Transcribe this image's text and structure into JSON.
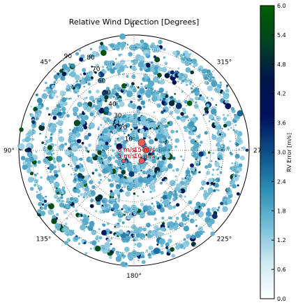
{
  "chart_data": {
    "type": "scatter",
    "projection": "polar",
    "title": "Relative Wind Direction [Degrees]",
    "theta_direction": "clockwise",
    "theta_zero": "top",
    "theta_ticks": [
      {
        "deg": 0,
        "label": "0°"
      },
      {
        "deg": 45,
        "label": "315°"
      },
      {
        "deg": 90,
        "label": "270°"
      },
      {
        "deg": 135,
        "label": "225°"
      },
      {
        "deg": 180,
        "label": "180°"
      },
      {
        "deg": 225,
        "label": "135°"
      },
      {
        "deg": 270,
        "label": "90°"
      },
      {
        "deg": 315,
        "label": "45°"
      }
    ],
    "r_ticks": [
      "10",
      "20",
      "30",
      "40",
      "50",
      "60",
      "70",
      "80",
      "90"
    ],
    "r_range": [
      0,
      90
    ],
    "colorbar": {
      "label": "RV Error [m/s]",
      "range": [
        0,
        6
      ],
      "ticks": [
        "0.0",
        "0.6",
        "1.2",
        "1.8",
        "2.4",
        "3.0",
        "3.6",
        "4.2",
        "4.8",
        "5.4",
        "6.0"
      ],
      "colormap": [
        "#ffffff",
        "#cde9f3",
        "#74bdd6",
        "#2b8cb5",
        "#0b4f86",
        "#021060",
        "#00154a",
        "#004422",
        "#006000"
      ]
    },
    "size_legend": {
      "labels": [
        "0 m/s",
        "5 m/s",
        "10 m/s",
        "15 m/s"
      ],
      "marker_color": "#e06060"
    },
    "n_points": 2600
  }
}
